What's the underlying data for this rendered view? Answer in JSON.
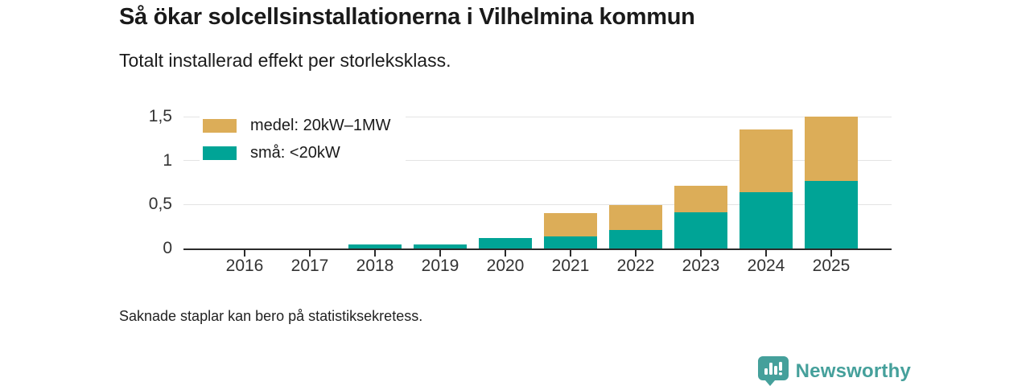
{
  "header": {
    "title": "Så ökar solcellsinstallationerna i Vilhelmina kommun",
    "subtitle": "Totalt installerad effekt per storleksklass."
  },
  "chart_data": {
    "type": "bar",
    "stacked": true,
    "title": "Så ökar solcellsinstallationerna i Vilhelmina kommun",
    "subtitle": "Totalt installerad effekt per storleksklass.",
    "categories": [
      "2016",
      "2017",
      "2018",
      "2019",
      "2020",
      "2021",
      "2022",
      "2023",
      "2024",
      "2025"
    ],
    "series": [
      {
        "name": "medel: 20kW–1MW",
        "color": "#DCAD58",
        "values": [
          0,
          0,
          0,
          0,
          0,
          0.26,
          0.28,
          0.3,
          0.71,
          0.73
        ]
      },
      {
        "name": "små: <20kW",
        "color": "#00A496",
        "values": [
          0,
          0,
          0.05,
          0.05,
          0.12,
          0.14,
          0.21,
          0.41,
          0.64,
          0.77
        ]
      }
    ],
    "totals": [
      0,
      0,
      0.05,
      0.05,
      0.12,
      0.4,
      0.49,
      0.71,
      1.35,
      1.5
    ],
    "missing_categories": [
      "2016",
      "2017"
    ],
    "xlabel": "",
    "ylabel": "",
    "ylim": [
      0,
      1.5
    ],
    "yticks": [
      {
        "value": 0,
        "label": "0"
      },
      {
        "value": 0.5,
        "label": "0,5"
      },
      {
        "value": 1,
        "label": "1"
      },
      {
        "value": 1.5,
        "label": "1,5"
      }
    ],
    "grid": "horizontal",
    "legend_position": "top-left-inside"
  },
  "footer": {
    "note": "Saknade staplar kan bero på statistiksekretess."
  },
  "branding": {
    "logo_text": "Newsworthy",
    "logo_color": "#45A09B"
  },
  "colors": {
    "medel": "#DCAD58",
    "sma": "#00A496",
    "axis": "#2b2b2b",
    "gridline": "#e4e4e4",
    "text": "#1a1a1a",
    "logo": "#45A09B"
  }
}
